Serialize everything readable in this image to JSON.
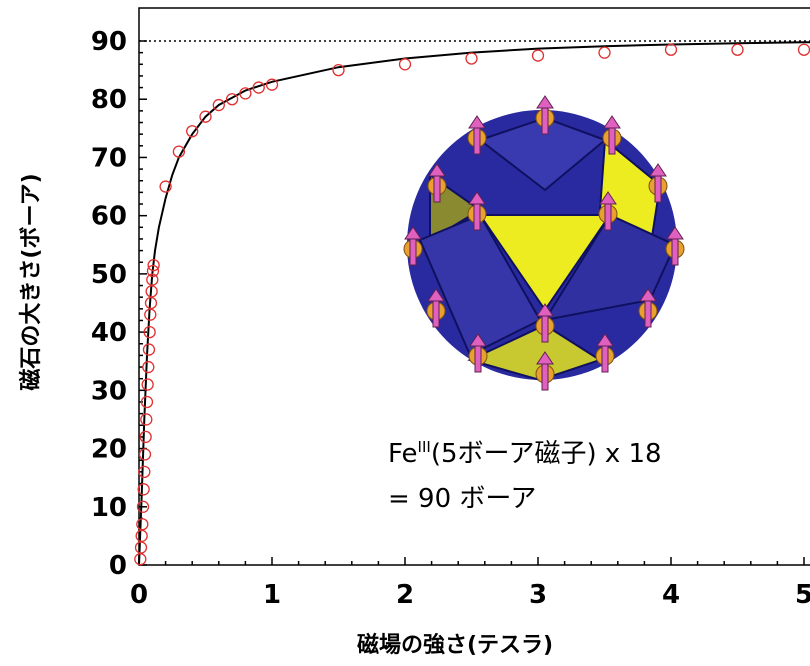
{
  "chart_data": {
    "type": "scatter",
    "xlabel": "磁場の強さ(テスラ)",
    "ylabel": "磁石の大きさ(ボーア)",
    "xlim": [
      0,
      5.1
    ],
    "ylim": [
      0,
      95
    ],
    "x_ticks": [
      "0",
      "1",
      "2",
      "3",
      "4",
      "5"
    ],
    "y_ticks": [
      "0",
      "10",
      "20",
      "30",
      "40",
      "50",
      "60",
      "70",
      "80",
      "90"
    ],
    "reference_line": {
      "y": 90
    },
    "annotation": {
      "line1_prefix": "Fe",
      "line1_sup": "III",
      "line1_suffix": "(5ボーア磁子) x 18",
      "line2": "= 90 ボーア"
    },
    "colors": {
      "markers": "#e03030",
      "fit_line": "#000000",
      "cluster_dark": "#2a2aa0",
      "cluster_light": "#ecec20",
      "spin_arrow": "#e060c0"
    },
    "series": [
      {
        "style": "open-circle",
        "x": [
          0.01,
          0.015,
          0.02,
          0.025,
          0.03,
          0.035,
          0.04,
          0.045,
          0.05,
          0.055,
          0.06,
          0.065,
          0.07,
          0.075,
          0.08,
          0.085,
          0.09,
          0.095,
          0.1,
          0.105,
          0.11,
          0.2,
          0.3,
          0.4,
          0.5,
          0.6,
          0.7,
          0.8,
          0.9,
          1.0,
          1.5,
          2.0,
          2.5,
          3.0,
          3.5,
          4.0,
          4.5,
          5.0
        ],
        "y": [
          1,
          3,
          5,
          7,
          10,
          13,
          16,
          19,
          22,
          25,
          28,
          31,
          34,
          37,
          40,
          43,
          45,
          47,
          49,
          50.5,
          51.5,
          65,
          71,
          74.5,
          77,
          79,
          80,
          81,
          82,
          82.5,
          85,
          86,
          87,
          87.5,
          88,
          88.5,
          88.5,
          88.5
        ]
      },
      {
        "style": "line",
        "x": [
          0,
          0.02,
          0.04,
          0.06,
          0.08,
          0.1,
          0.12,
          0.15,
          0.2,
          0.25,
          0.3,
          0.4,
          0.5,
          0.6,
          0.8,
          1.0,
          1.5,
          2.0,
          2.5,
          3.0,
          3.5,
          4.0,
          4.5,
          5.0,
          5.1
        ],
        "y": [
          0,
          12,
          25,
          36,
          44,
          50,
          54,
          58,
          63,
          67,
          70,
          74,
          77,
          79,
          81.5,
          83,
          85.5,
          87,
          88,
          88.7,
          89.1,
          89.4,
          89.6,
          89.8,
          89.8
        ]
      }
    ]
  }
}
